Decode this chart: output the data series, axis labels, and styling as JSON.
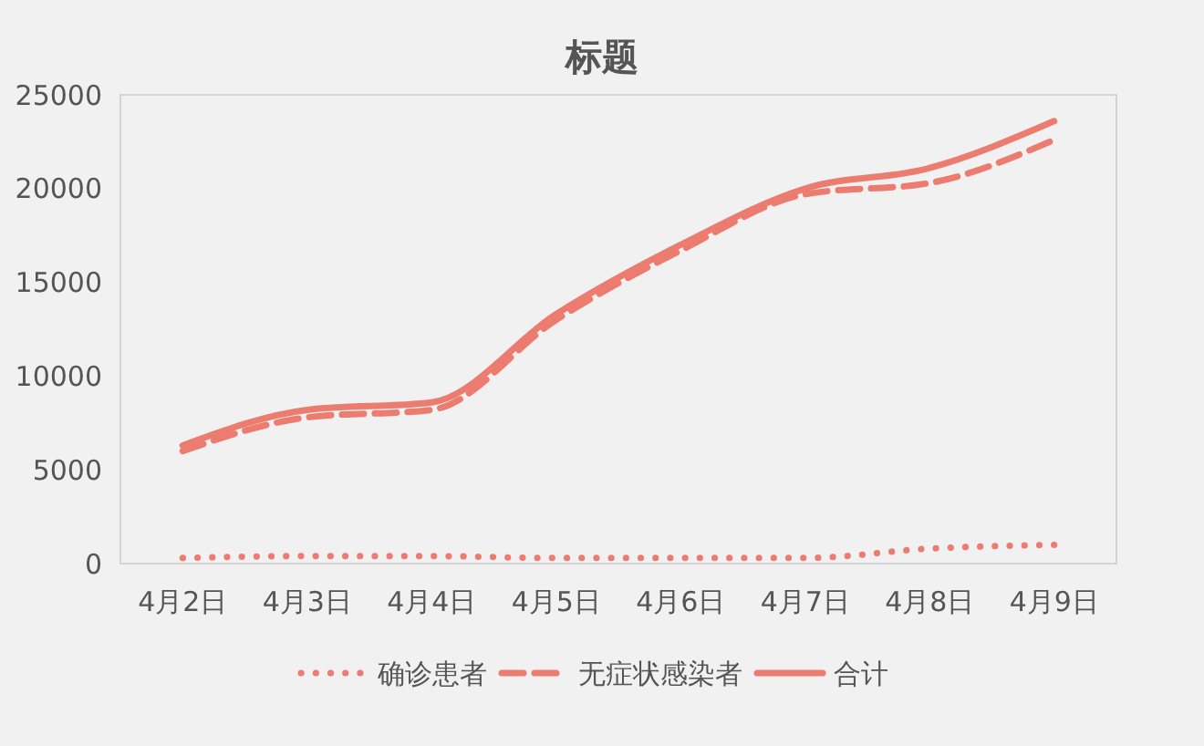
{
  "chart_data": {
    "type": "line",
    "title": "标题",
    "categories": [
      "4月2日",
      "4月3日",
      "4月4日",
      "4月5日",
      "4月6日",
      "4月7日",
      "4月8日",
      "4月9日"
    ],
    "series": [
      {
        "name": "确诊患者",
        "color": "#ec7c6f",
        "line_style": "dotted",
        "values": [
          300,
          400,
          400,
          300,
          300,
          300,
          800,
          1000
        ]
      },
      {
        "name": "无症状感染者",
        "color": "#ec7c6f",
        "line_style": "dashed",
        "values": [
          6000,
          7800,
          8200,
          13000,
          16700,
          19700,
          20300,
          22600
        ]
      },
      {
        "name": "合计",
        "color": "#ec7c6f",
        "line_style": "solid",
        "values": [
          6300,
          8200,
          8600,
          13300,
          17000,
          20000,
          21100,
          23600
        ]
      }
    ],
    "ylim": [
      0,
      25000
    ],
    "yticks": [
      0,
      5000,
      10000,
      15000,
      20000,
      25000
    ],
    "grid": false,
    "legend": "bottom"
  }
}
